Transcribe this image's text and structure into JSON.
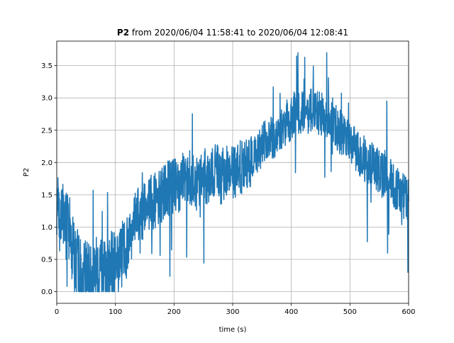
{
  "chart_data": {
    "type": "line",
    "title_bold": "P2",
    "title_rest": " from 2020/06/04 11:58:41 to 2020/06/04 12:08:41",
    "xlabel": "time (s)",
    "ylabel": "P2",
    "xlim": [
      0,
      600
    ],
    "ylim": [
      -0.18,
      3.88
    ],
    "xticks": [
      0,
      100,
      200,
      300,
      400,
      500,
      600
    ],
    "yticks": [
      0.0,
      0.5,
      1.0,
      1.5,
      2.0,
      2.5,
      3.0,
      3.5
    ],
    "xtick_labels": [
      "0",
      "100",
      "200",
      "300",
      "400",
      "500",
      "600"
    ],
    "ytick_labels": [
      "0.0",
      "0.5",
      "1.0",
      "1.5",
      "2.0",
      "2.5",
      "3.0",
      "3.5"
    ],
    "grid": true,
    "line_color": "#1f77b4",
    "series": [
      {
        "x": [
          0,
          5,
          10,
          15,
          20,
          25,
          30,
          35,
          40,
          45,
          50,
          55,
          60,
          65,
          70,
          75,
          80,
          85,
          90,
          95,
          100,
          105,
          110,
          115,
          120,
          125,
          130,
          135,
          140,
          145,
          150,
          155,
          160,
          165,
          170,
          175,
          180,
          185,
          190,
          195,
          200,
          205,
          210,
          215,
          220,
          225,
          230,
          235,
          240,
          245,
          250,
          255,
          260,
          265,
          270,
          275,
          280,
          285,
          290,
          295,
          300,
          305,
          310,
          315,
          320,
          325,
          330,
          335,
          340,
          345,
          350,
          355,
          360,
          365,
          370,
          375,
          380,
          385,
          390,
          395,
          400,
          405,
          410,
          415,
          420,
          425,
          430,
          435,
          440,
          445,
          450,
          455,
          460,
          465,
          470,
          475,
          480,
          485,
          490,
          495,
          500,
          505,
          510,
          515,
          520,
          525,
          530,
          535,
          540,
          545,
          550,
          555,
          560,
          565,
          570,
          575,
          580,
          585,
          590,
          595,
          600
        ],
        "y": [
          1.4,
          1.1,
          1.3,
          1.0,
          1.0,
          0.8,
          0.5,
          0.4,
          0.3,
          0.3,
          0.25,
          0.25,
          0.25,
          0.3,
          0.3,
          0.3,
          0.3,
          0.35,
          0.4,
          0.4,
          0.5,
          0.5,
          0.55,
          0.6,
          0.75,
          0.9,
          1.0,
          1.1,
          1.2,
          1.2,
          1.25,
          1.3,
          1.35,
          1.4,
          1.45,
          1.5,
          1.5,
          1.55,
          1.6,
          1.6,
          1.6,
          1.65,
          1.65,
          1.7,
          1.7,
          1.75,
          1.75,
          1.7,
          1.7,
          1.75,
          1.75,
          1.8,
          1.8,
          1.85,
          1.85,
          1.85,
          1.8,
          1.8,
          1.85,
          1.85,
          1.85,
          1.9,
          1.9,
          1.95,
          1.95,
          2.0,
          2.05,
          2.1,
          2.15,
          2.2,
          2.25,
          2.3,
          2.3,
          2.35,
          2.4,
          2.45,
          2.5,
          2.55,
          2.6,
          2.65,
          2.7,
          2.75,
          2.75,
          2.8,
          2.8,
          2.8,
          2.8,
          2.8,
          2.75,
          2.75,
          2.75,
          2.7,
          2.7,
          2.65,
          2.6,
          2.55,
          2.5,
          2.45,
          2.4,
          2.35,
          2.3,
          2.25,
          2.2,
          2.15,
          2.1,
          2.05,
          2.0,
          2.0,
          1.95,
          1.9,
          1.85,
          1.8,
          1.8,
          1.75,
          1.7,
          1.65,
          1.6,
          1.55,
          1.5,
          1.45,
          1.4
        ]
      }
    ]
  }
}
